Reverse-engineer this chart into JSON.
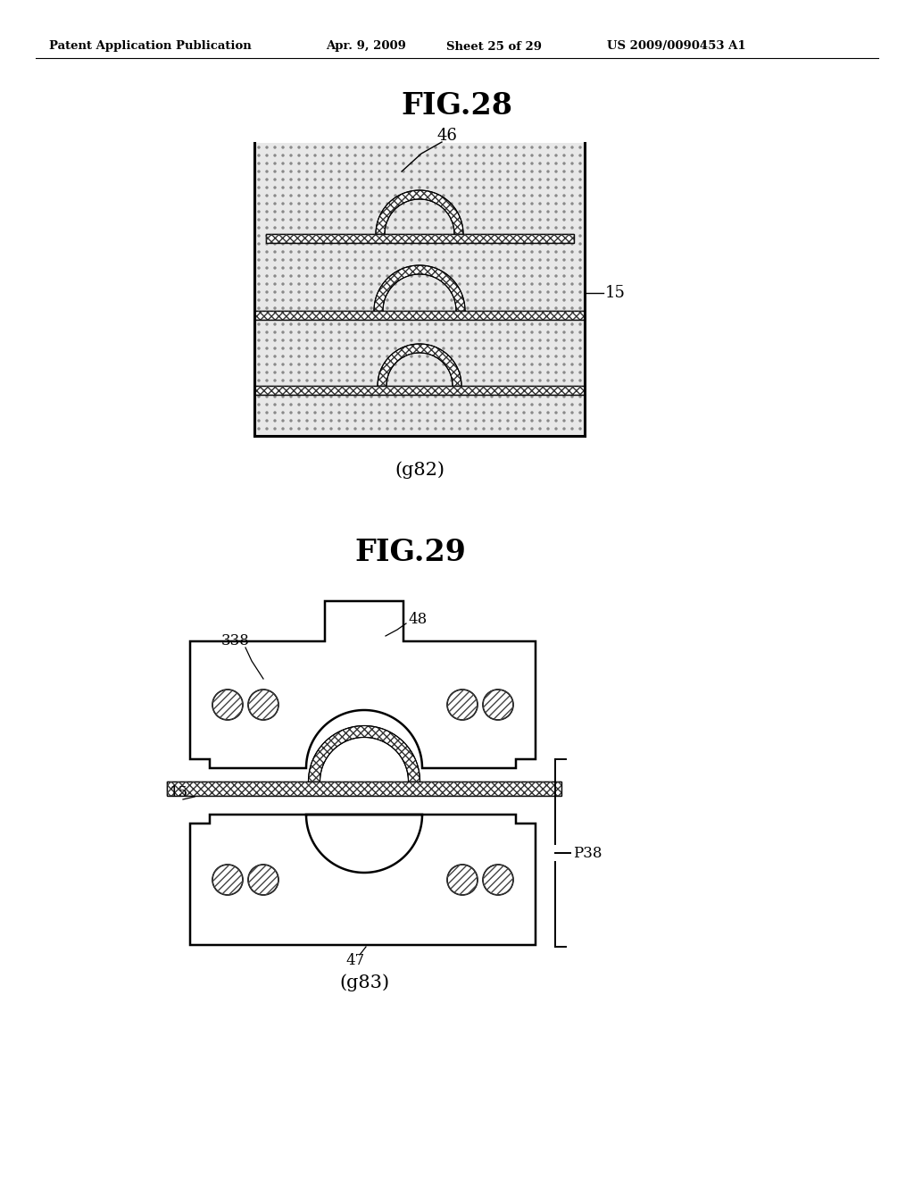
{
  "background_color": "#ffffff",
  "header_text": "Patent Application Publication",
  "header_date": "Apr. 9, 2009",
  "header_sheet": "Sheet 25 of 29",
  "header_patent": "US 2009/0090453 A1",
  "fig28_title": "FIG.28",
  "fig28_caption": "(g82)",
  "fig28_label_46": "46",
  "fig28_label_15": "15",
  "fig29_title": "FIG.29",
  "fig29_caption": "(g83)",
  "fig29_label_338": "338",
  "fig29_label_48": "48",
  "fig29_label_15": "15",
  "fig29_label_47": "47",
  "fig29_label_P38": "P38",
  "line_color": "#000000"
}
